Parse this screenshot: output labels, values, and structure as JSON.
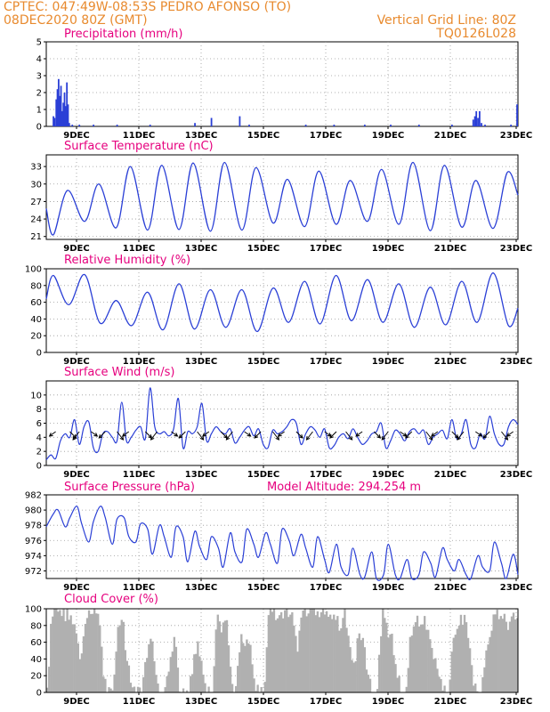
{
  "header": {
    "line1_left": "CPTEC:   047:49W-08:53S   PEDRO AFONSO (TO)",
    "line2_left": "08DEC2020 80Z (GMT)",
    "line1_right": "Vertical Grid Line: 80Z",
    "line2_right": "TQ0126L028"
  },
  "colors": {
    "header": "#e88a2e",
    "title": "#e6007e",
    "line": "#2a3fd6",
    "cloud": "#b0b0b0"
  },
  "chart_data": [
    {
      "type": "bar",
      "title": "Precipitation (mm/h)",
      "xlabels": [
        "9DEC",
        "11DEC",
        "13DEC",
        "15DEC",
        "17DEC",
        "19DEC",
        "21DEC",
        "23DEC"
      ],
      "ylim": [
        0,
        5
      ],
      "yticks": [
        0,
        1,
        2,
        3,
        4,
        5
      ],
      "grid": true,
      "events": [
        {
          "day": 0.3,
          "value": 0.6
        },
        {
          "day": 0.35,
          "value": 0.5
        },
        {
          "day": 0.42,
          "value": 1.6
        },
        {
          "day": 0.47,
          "value": 2.2
        },
        {
          "day": 0.52,
          "value": 2.8
        },
        {
          "day": 0.57,
          "value": 1.8
        },
        {
          "day": 0.62,
          "value": 2.4
        },
        {
          "day": 0.67,
          "value": 0.9
        },
        {
          "day": 0.72,
          "value": 1.4
        },
        {
          "day": 0.77,
          "value": 2.0
        },
        {
          "day": 0.82,
          "value": 1.2
        },
        {
          "day": 0.87,
          "value": 2.6
        },
        {
          "day": 0.92,
          "value": 1.3
        },
        {
          "day": 0.97,
          "value": 0.2
        },
        {
          "day": 1.1,
          "value": 0.1
        },
        {
          "day": 1.4,
          "value": 0.1
        },
        {
          "day": 2.0,
          "value": 0.1
        },
        {
          "day": 3.0,
          "value": 0.1
        },
        {
          "day": 4.4,
          "value": 0.1
        },
        {
          "day": 6.3,
          "value": 0.2
        },
        {
          "day": 7.0,
          "value": 0.5
        },
        {
          "day": 8.2,
          "value": 0.6
        },
        {
          "day": 8.6,
          "value": 0.1
        },
        {
          "day": 11.0,
          "value": 0.1
        },
        {
          "day": 12.2,
          "value": 0.1
        },
        {
          "day": 13.5,
          "value": 0.1
        },
        {
          "day": 14.6,
          "value": 0.1
        },
        {
          "day": 15.8,
          "value": 0.1
        },
        {
          "day": 17.2,
          "value": 0.1
        },
        {
          "day": 18.1,
          "value": 0.4
        },
        {
          "day": 18.17,
          "value": 0.6
        },
        {
          "day": 18.23,
          "value": 0.9
        },
        {
          "day": 18.3,
          "value": 0.5
        },
        {
          "day": 18.37,
          "value": 0.9
        },
        {
          "day": 18.45,
          "value": 0.2
        },
        {
          "day": 18.6,
          "value": 0.1
        },
        {
          "day": 19.7,
          "value": 0.1
        },
        {
          "day": 19.96,
          "value": 1.3
        }
      ]
    },
    {
      "type": "line",
      "title": "Surface Temperature (nC)",
      "xlabels": [
        "9DEC",
        "11DEC",
        "13DEC",
        "15DEC",
        "17DEC",
        "19DEC",
        "21DEC",
        "23DEC"
      ],
      "ylim": [
        20.5,
        35
      ],
      "yticks": [
        21,
        24,
        27,
        30,
        33
      ],
      "grid": true,
      "daily_min": [
        21.3,
        23.6,
        22.5,
        22.1,
        22.2,
        21.9,
        22.1,
        23.3,
        22.7,
        23.1,
        23.6,
        23.1,
        22.0,
        22.6,
        22.4
      ],
      "daily_max": [
        28.9,
        30.0,
        33.0,
        33.2,
        33.6,
        33.7,
        32.8,
        30.8,
        32.2,
        30.6,
        32.5,
        33.7,
        33.2,
        30.6,
        32.0
      ],
      "start_value": 25.8,
      "end_value": 28.1
    },
    {
      "type": "line",
      "title": "Relative Humidity (%)",
      "xlabels": [
        "9DEC",
        "11DEC",
        "13DEC",
        "15DEC",
        "17DEC",
        "19DEC",
        "21DEC",
        "23DEC"
      ],
      "ylim": [
        0,
        100
      ],
      "yticks": [
        0,
        20,
        40,
        60,
        80,
        100
      ],
      "grid": true,
      "daily_max": [
        92,
        93,
        62,
        72,
        82,
        75,
        75,
        77,
        85,
        92,
        87,
        82,
        78,
        85,
        95
      ],
      "daily_min": [
        57,
        35,
        32,
        27,
        28,
        30,
        25,
        36,
        34,
        38,
        36,
        30,
        33,
        36,
        32
      ],
      "start_value": 64,
      "end_value": 53
    },
    {
      "type": "line",
      "title": "Surface Wind (m/s)",
      "xlabels": [
        "9DEC",
        "11DEC",
        "13DEC",
        "15DEC",
        "17DEC",
        "19DEC",
        "21DEC",
        "23DEC"
      ],
      "ylim": [
        0,
        12
      ],
      "yticks": [
        0,
        2,
        4,
        6,
        8,
        10
      ],
      "grid": true,
      "x": [
        0,
        0.2,
        0.4,
        0.6,
        0.8,
        1.0,
        1.2,
        1.4,
        1.6,
        1.8,
        2.0,
        2.2,
        2.4,
        2.6,
        2.8,
        3.0,
        3.2,
        3.4,
        3.6,
        3.8,
        4.0,
        4.2,
        4.4,
        4.6,
        4.8,
        5.0,
        5.2,
        5.4,
        5.6,
        5.8,
        6.0,
        6.2,
        6.4,
        6.6,
        6.8,
        7.0,
        7.2,
        7.4,
        7.6,
        7.8,
        8.0,
        8.2,
        8.4,
        8.6,
        8.8,
        9.0,
        9.2,
        9.4,
        9.6,
        9.8,
        10.0,
        10.2,
        10.4,
        10.6,
        10.8,
        11.0,
        11.2,
        11.4,
        11.6,
        11.8,
        12.0,
        12.2,
        12.4,
        12.6,
        12.8,
        13.0,
        13.2,
        13.4,
        13.6,
        13.8,
        14.0,
        14.2,
        14.4,
        14.6,
        14.8,
        15.0,
        15.2,
        15.4,
        15.6,
        15.8,
        16.0,
        16.2,
        16.4,
        16.6,
        16.8,
        17.0,
        17.2,
        17.4,
        17.6,
        17.8,
        18.0,
        18.2,
        18.4,
        18.6,
        18.8,
        19.0,
        19.2,
        19.4,
        19.6,
        19.8,
        20.0
      ],
      "values": [
        0.8,
        1.5,
        1.0,
        3.5,
        4.5,
        4.0,
        6.5,
        3.0,
        5.5,
        6.2,
        2.5,
        2.0,
        4.5,
        4.8,
        4.0,
        3.5,
        9.0,
        3.5,
        4.0,
        5.0,
        5.5,
        3.8,
        11.0,
        5.5,
        4.5,
        4.8,
        4.2,
        5.2,
        9.5,
        2.5,
        4.8,
        4.5,
        5.5,
        8.8,
        3.5,
        4.5,
        5.5,
        4.8,
        4.5,
        5.2,
        3.2,
        4.0,
        5.0,
        5.5,
        4.2,
        5.2,
        3.0,
        2.5,
        5.0,
        4.5,
        4.8,
        5.5,
        6.5,
        6.0,
        3.0,
        4.5,
        5.5,
        5.0,
        4.0,
        5.2,
        2.5,
        2.8,
        4.0,
        4.5,
        3.8,
        5.2,
        4.0,
        3.0,
        3.5,
        4.5,
        4.8,
        6.0,
        2.5,
        3.5,
        5.0,
        4.5,
        3.5,
        4.8,
        5.2,
        4.5,
        5.0,
        3.0,
        4.0,
        4.5,
        5.0,
        3.8,
        6.5,
        3.8,
        4.5,
        6.5,
        3.0,
        2.5,
        4.5,
        3.8,
        7.0,
        4.5,
        3.0,
        3.0,
        5.5,
        6.5,
        5.8
      ],
      "arrow_day_positions": [
        0.4,
        1.0,
        1.4,
        1.9,
        2.5,
        3.0,
        3.5,
        4.2,
        4.7,
        5.3,
        5.9,
        6.4,
        6.9,
        7.4,
        7.9,
        8.4,
        9.1,
        9.6,
        10.1,
        10.6,
        11.3,
        11.8,
        12.3,
        12.7,
        13.4,
        13.9,
        14.5,
        15.0,
        15.5,
        16.1,
        16.6,
        17.2,
        17.7,
        18.2,
        18.8,
        19.3,
        19.8
      ]
    },
    {
      "type": "line",
      "title": "Surface Pressure (hPa)",
      "annotation": "Model Altitude: 294.254  m",
      "xlabels": [
        "9DEC",
        "11DEC",
        "13DEC",
        "15DEC",
        "17DEC",
        "19DEC",
        "21DEC",
        "23DEC"
      ],
      "ylim": [
        971,
        982
      ],
      "yticks": [
        972,
        974,
        976,
        978,
        980,
        982
      ],
      "grid": true,
      "x": [
        0,
        0.3,
        0.5,
        0.8,
        1.0,
        1.3,
        1.5,
        1.8,
        2.0,
        2.3,
        2.5,
        2.8,
        3.0,
        3.3,
        3.5,
        3.8,
        4.0,
        4.3,
        4.5,
        4.8,
        5.0,
        5.3,
        5.5,
        5.8,
        6.0,
        6.3,
        6.5,
        6.8,
        7.0,
        7.3,
        7.5,
        7.8,
        8.0,
        8.3,
        8.5,
        8.8,
        9.0,
        9.3,
        9.5,
        9.8,
        10.0,
        10.3,
        10.5,
        10.8,
        11.0,
        11.3,
        11.5,
        11.8,
        12.0,
        12.3,
        12.5,
        12.8,
        13.0,
        13.3,
        13.5,
        13.8,
        14.0,
        14.3,
        14.5,
        14.8,
        15.0,
        15.3,
        15.5,
        15.8,
        16.0,
        16.3,
        16.5,
        16.8,
        17.0,
        17.3,
        17.5,
        17.8,
        18.0,
        18.3,
        18.5,
        18.8,
        19.0,
        19.3,
        19.5,
        19.8,
        20.0
      ],
      "values": [
        977.8,
        979.5,
        980.0,
        977.8,
        979.0,
        980.5,
        978.2,
        975.8,
        978.5,
        980.5,
        979.0,
        975.5,
        978.8,
        979.0,
        976.5,
        975.8,
        978.2,
        977.5,
        974.2,
        978.0,
        976.5,
        973.8,
        977.8,
        976.5,
        973.2,
        977.2,
        975.2,
        973.5,
        976.5,
        975.0,
        972.5,
        977.0,
        974.5,
        973.2,
        977.5,
        975.5,
        973.8,
        977.0,
        975.5,
        973.0,
        977.5,
        976.0,
        974.0,
        976.8,
        975.0,
        972.5,
        976.5,
        973.5,
        971.8,
        975.5,
        972.5,
        971.5,
        975.0,
        971.5,
        971.2,
        974.5,
        971.0,
        971.5,
        975.5,
        971.5,
        971.0,
        973.5,
        971.0,
        971.5,
        974.5,
        973.0,
        971.2,
        975.0,
        973.5,
        972.0,
        973.5,
        971.5,
        971.0,
        974.0,
        972.5,
        972.0,
        975.8,
        973.0,
        971.0,
        974.2,
        971.5
      ]
    },
    {
      "type": "area",
      "title": "Cloud Cover (%)",
      "xlabels": [
        "9DEC",
        "11DEC",
        "13DEC",
        "15DEC",
        "17DEC",
        "19DEC",
        "21DEC",
        "23DEC"
      ],
      "ylim": [
        0,
        100
      ],
      "yticks": [
        0,
        20,
        40,
        60,
        80,
        100
      ],
      "grid": true,
      "x": [
        0,
        0.2,
        0.4,
        0.6,
        0.8,
        1.0,
        1.2,
        1.4,
        1.6,
        1.8,
        2.0,
        2.2,
        2.4,
        2.6,
        2.8,
        3.0,
        3.2,
        3.4,
        3.6,
        3.8,
        4.0,
        4.2,
        4.4,
        4.6,
        4.8,
        5.0,
        5.2,
        5.4,
        5.6,
        5.8,
        6.0,
        6.2,
        6.4,
        6.6,
        6.8,
        7.0,
        7.2,
        7.4,
        7.6,
        7.8,
        8.0,
        8.2,
        8.4,
        8.6,
        8.8,
        9.0,
        9.2,
        9.4,
        9.6,
        9.8,
        10.0,
        10.2,
        10.4,
        10.6,
        10.8,
        11.0,
        11.2,
        11.4,
        11.6,
        11.8,
        12.0,
        12.2,
        12.4,
        12.6,
        12.8,
        13.0,
        13.2,
        13.4,
        13.6,
        13.8,
        14.0,
        14.2,
        14.4,
        14.6,
        14.8,
        15.0,
        15.2,
        15.4,
        15.6,
        15.8,
        16.0,
        16.2,
        16.4,
        16.6,
        16.8,
        17.0,
        17.2,
        17.4,
        17.6,
        17.8,
        18.0,
        18.2,
        18.4,
        18.6,
        18.8,
        19.0,
        19.2,
        19.4,
        19.6,
        19.8,
        20.0
      ],
      "values": [
        0,
        98,
        95,
        100,
        92,
        98,
        70,
        40,
        88,
        95,
        96,
        92,
        15,
        0,
        0,
        70,
        85,
        30,
        10,
        0,
        0,
        45,
        75,
        20,
        0,
        0,
        40,
        65,
        10,
        0,
        0,
        35,
        65,
        20,
        0,
        0,
        90,
        80,
        90,
        10,
        0,
        65,
        60,
        55,
        5,
        0,
        0,
        92,
        98,
        85,
        95,
        98,
        92,
        50,
        95,
        98,
        96,
        95,
        95,
        90,
        85,
        95,
        75,
        95,
        60,
        30,
        70,
        55,
        25,
        0,
        0,
        95,
        75,
        65,
        30,
        0,
        0,
        65,
        90,
        85,
        90,
        70,
        40,
        20,
        0,
        0,
        55,
        75,
        90,
        85,
        25,
        0,
        0,
        40,
        80,
        92,
        95,
        90,
        80,
        90,
        85
      ]
    }
  ]
}
